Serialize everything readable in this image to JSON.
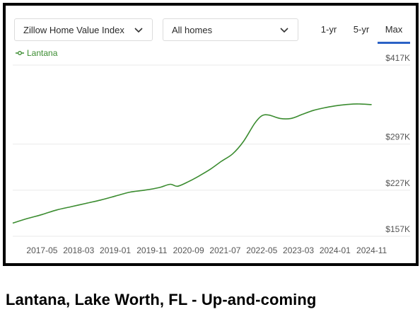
{
  "controls": {
    "metric_label": "Zillow Home Value Index",
    "home_type_label": "All homes",
    "ranges": [
      "1-yr",
      "5-yr",
      "Max"
    ],
    "active_range": "Max"
  },
  "caption": "Lantana, Lake Worth, FL - Up-and-coming",
  "colors": {
    "line": "#3b8c30",
    "accent": "#2b62c6",
    "grid": "#e9e9e9"
  },
  "chart_data": {
    "type": "line",
    "legend_position": "top-left",
    "grid": true,
    "ylim": [
      157,
      417
    ],
    "y_ticks": [
      157,
      227,
      297,
      417
    ],
    "y_tick_labels": [
      "$157K",
      "$227K",
      "$297K",
      "$417K"
    ],
    "x_tick_labels": [
      "2017-05",
      "2018-03",
      "2019-01",
      "2019-11",
      "2020-09",
      "2021-07",
      "2022-05",
      "2023-03",
      "2024-01",
      "2024-11"
    ],
    "xlim": [
      "2016-09",
      "2025-01"
    ],
    "series": [
      {
        "name": "Lantana",
        "x": [
          "2016-09",
          "2017-01",
          "2017-05",
          "2017-09",
          "2018-01",
          "2018-05",
          "2018-09",
          "2019-01",
          "2019-05",
          "2019-09",
          "2020-01",
          "2020-04",
          "2020-06",
          "2020-09",
          "2020-12",
          "2021-03",
          "2021-06",
          "2021-09",
          "2021-12",
          "2022-03",
          "2022-05",
          "2022-07",
          "2022-10",
          "2023-01",
          "2023-04",
          "2023-07",
          "2023-10",
          "2024-01",
          "2024-04",
          "2024-07",
          "2024-11"
        ],
        "values": [
          177,
          184,
          190,
          197,
          202,
          207,
          212,
          218,
          224,
          227,
          231,
          236,
          233,
          240,
          249,
          259,
          271,
          282,
          301,
          328,
          340,
          341,
          336,
          336,
          342,
          348,
          352,
          355,
          357,
          358,
          357
        ]
      }
    ]
  }
}
